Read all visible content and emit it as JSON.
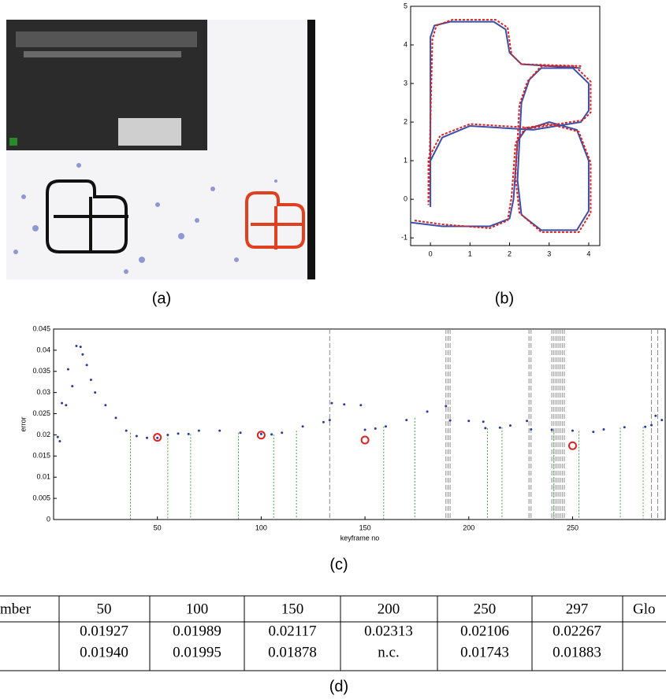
{
  "panel_labels": [
    "(a)",
    "(b)",
    "(c)",
    "(d)"
  ],
  "chart_data": [
    {
      "type": "line",
      "xlim": [
        -0.5,
        4.3
      ],
      "ylim": [
        -1.2,
        5
      ],
      "xticks": [
        0,
        1,
        2,
        3,
        4
      ],
      "yticks": [
        -1,
        0,
        1,
        2,
        3,
        4,
        5
      ],
      "series": [
        {
          "color": "#3a4fa8",
          "x": [
            -0.5,
            0.3,
            1.5,
            2.0,
            2.1,
            2.2,
            2.4,
            3.0,
            3.7,
            4.0,
            4.0,
            3.7,
            2.8,
            2.3,
            2.2,
            2.3,
            2.5,
            2.8,
            3.6,
            4.0,
            4.0,
            3.8,
            2.6,
            1.0,
            0.3,
            0.0,
            0.0,
            0.0,
            0.1,
            0.5,
            1.6,
            1.9,
            2.0,
            2.3,
            3.8
          ],
          "y": [
            -0.6,
            -0.7,
            -0.7,
            -0.5,
            0.0,
            1.5,
            1.8,
            2.0,
            1.8,
            1.0,
            -0.3,
            -0.8,
            -0.8,
            -0.4,
            0.5,
            2.5,
            3.1,
            3.4,
            3.4,
            3.0,
            2.3,
            2.0,
            1.8,
            1.9,
            1.6,
            1.0,
            -0.2,
            4.2,
            4.5,
            4.6,
            4.6,
            4.4,
            3.8,
            3.5,
            3.4
          ]
        },
        {
          "color": "#e02020",
          "x": [
            -0.4,
            0.3,
            1.5,
            1.95,
            2.05,
            2.15,
            2.4,
            3.0,
            3.75,
            4.05,
            4.05,
            3.75,
            2.8,
            2.25,
            2.15,
            2.25,
            2.45,
            2.8,
            3.65,
            4.05,
            4.05,
            3.85,
            2.6,
            1.0,
            0.25,
            -0.05,
            -0.05,
            0.05,
            0.15,
            0.55,
            1.65,
            1.95,
            2.05,
            2.3,
            3.85
          ],
          "y": [
            -0.55,
            -0.65,
            -0.75,
            -0.55,
            0.05,
            1.45,
            1.85,
            1.95,
            1.75,
            0.95,
            -0.35,
            -0.85,
            -0.85,
            -0.35,
            0.55,
            2.45,
            3.05,
            3.45,
            3.45,
            3.05,
            2.25,
            2.05,
            1.85,
            1.95,
            1.65,
            1.05,
            -0.15,
            4.15,
            4.5,
            4.65,
            4.65,
            4.45,
            3.75,
            3.5,
            3.45
          ]
        }
      ]
    },
    {
      "type": "scatter",
      "xlabel": "keyframe no",
      "ylabel": "error",
      "xlim": [
        0,
        295
      ],
      "ylim": [
        0,
        0.045
      ],
      "xticks": [
        50,
        100,
        150,
        200,
        250
      ],
      "yticks": [
        0,
        0.005,
        0.01,
        0.015,
        0.02,
        0.025,
        0.03,
        0.035,
        0.04,
        0.045
      ],
      "series": [
        {
          "color": "#2a3c9a",
          "x": [
            2,
            3,
            4,
            6,
            7,
            9,
            11,
            13,
            14,
            16,
            18,
            20,
            25,
            30,
            35,
            40,
            45,
            50,
            55,
            60,
            65,
            70,
            80,
            90,
            100,
            105,
            110,
            120,
            130,
            133,
            134,
            140,
            148,
            150,
            155,
            160,
            170,
            180,
            189,
            191,
            200,
            207,
            208,
            215,
            220,
            228,
            230,
            240,
            250,
            260,
            265,
            275,
            285,
            288,
            290,
            293
          ],
          "values": [
            0.0195,
            0.0185,
            0.0275,
            0.027,
            0.0355,
            0.0315,
            0.041,
            0.0408,
            0.039,
            0.0365,
            0.033,
            0.03,
            0.027,
            0.024,
            0.021,
            0.0197,
            0.0193,
            0.0193,
            0.02,
            0.0203,
            0.0202,
            0.021,
            0.021,
            0.0205,
            0.0202,
            0.0201,
            0.0205,
            0.022,
            0.023,
            0.0235,
            0.0275,
            0.0272,
            0.027,
            0.0212,
            0.0215,
            0.022,
            0.0235,
            0.0255,
            0.0268,
            0.0234,
            0.0233,
            0.0231,
            0.0216,
            0.0217,
            0.0222,
            0.0233,
            0.0213,
            0.0212,
            0.021,
            0.0207,
            0.0213,
            0.0218,
            0.0219,
            0.0223,
            0.0245,
            0.0235
          ]
        }
      ],
      "circles": {
        "color": "#e02020",
        "x": [
          50,
          100,
          150,
          250
        ],
        "values": [
          0.0194,
          0.01995,
          0.01878,
          0.01743
        ]
      },
      "green_lines": {
        "color": "#3fa83f",
        "x": [
          37,
          55,
          66,
          89,
          106,
          117,
          159,
          174,
          209,
          216,
          241,
          253,
          273,
          284
        ],
        "values": [
          0.0205,
          0.02,
          0.0202,
          0.0205,
          0.0201,
          0.021,
          0.022,
          0.024,
          0.0216,
          0.0218,
          0.0212,
          0.0209,
          0.0217,
          0.0219
        ]
      },
      "gray_lines": {
        "color": "#888888",
        "x": [
          133,
          189,
          190,
          191,
          229,
          230,
          240,
          241,
          242,
          243,
          244,
          245,
          246,
          288,
          291
        ]
      }
    }
  ],
  "table": {
    "header": [
      "mber",
      "50",
      "100",
      "150",
      "200",
      "250",
      "297",
      "Glo"
    ],
    "rows": [
      [
        "0.01927",
        "0.01989",
        "0.02117",
        "0.02313",
        "0.02106",
        "0.02267"
      ],
      [
        "0.01940",
        "0.01995",
        "0.01878",
        "n.c.",
        "0.01743",
        "0.01883"
      ]
    ]
  }
}
